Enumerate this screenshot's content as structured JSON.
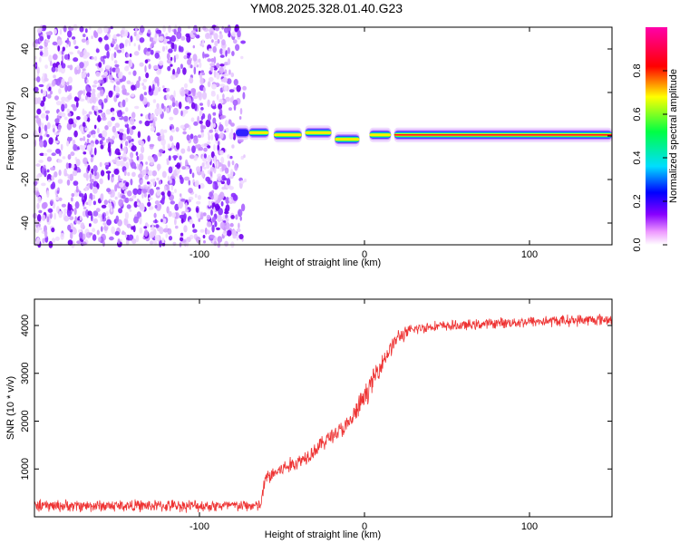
{
  "title": "YM08.2025.328.01.40.G23",
  "colors": {
    "snr_line": "#ee3333",
    "axis": "#000000",
    "colorbar": [
      "#ffffff",
      "#ee99ff",
      "#8800ff",
      "#0000ff",
      "#00ddff",
      "#00ff44",
      "#ffff00",
      "#ff0000",
      "#ff00aa"
    ]
  },
  "chart_data": [
    {
      "type": "heatmap",
      "name": "spectral-amplitude",
      "xlabel": "Height of straight line (km)",
      "ylabel": "Frequency (Hz)",
      "xlim": [
        -200,
        150
      ],
      "ylim": [
        -50,
        50
      ],
      "xticks": [
        -100,
        0,
        100
      ],
      "yticks": [
        -40,
        -20,
        0,
        20,
        40
      ],
      "colorbar": {
        "label": "Normalized spectral amplitude",
        "range": [
          0,
          1
        ],
        "ticks": [
          "0.0",
          "0.2",
          "0.4",
          "0.6",
          "0.8"
        ]
      },
      "noise_region": {
        "x_from": -200,
        "x_to": -72,
        "freq_range": [
          -50,
          50
        ],
        "amplitude": "low (0.1-0.25)"
      },
      "peak_segments": [
        {
          "x_from": -78,
          "x_to": -70,
          "freq": 1.5,
          "amplitude": 0.35
        },
        {
          "x_from": -70,
          "x_to": -58,
          "freq": 1.5,
          "amplitude": 0.9
        },
        {
          "x_from": -55,
          "x_to": -38,
          "freq": 0.5,
          "amplitude": 0.9
        },
        {
          "x_from": -36,
          "x_to": -20,
          "freq": 1.5,
          "amplitude": 0.9
        },
        {
          "x_from": -18,
          "x_to": -3,
          "freq": -1.5,
          "amplitude": 0.9
        },
        {
          "x_from": 3,
          "x_to": 16,
          "freq": 0.5,
          "amplitude": 0.9
        },
        {
          "x_from": 18,
          "x_to": 150,
          "freq": 0.5,
          "amplitude": 0.95
        }
      ]
    },
    {
      "type": "line",
      "name": "snr",
      "xlabel": "Height of straight line (km)",
      "ylabel": "SNR (10 * v/v)",
      "xlim": [
        -200,
        150
      ],
      "ylim": [
        0,
        4550
      ],
      "xticks": [
        -100,
        0,
        100
      ],
      "yticks": [
        1000,
        2000,
        3000,
        4000
      ],
      "series": [
        {
          "name": "SNR",
          "x": [
            -200,
            -150,
            -100,
            -70,
            -63,
            -60,
            -50,
            -40,
            -30,
            -20,
            -10,
            0,
            10,
            20,
            30,
            40,
            60,
            80,
            100,
            150
          ],
          "y": [
            230,
            230,
            230,
            230,
            230,
            800,
            1000,
            1150,
            1400,
            1700,
            1900,
            2500,
            3200,
            3750,
            3920,
            3980,
            4000,
            4050,
            4080,
            4130
          ],
          "noise_amplitude": [
            150,
            150,
            150,
            150,
            150,
            200,
            200,
            200,
            200,
            200,
            250,
            300,
            250,
            200,
            150,
            130,
            130,
            130,
            140,
            150
          ]
        }
      ]
    }
  ]
}
